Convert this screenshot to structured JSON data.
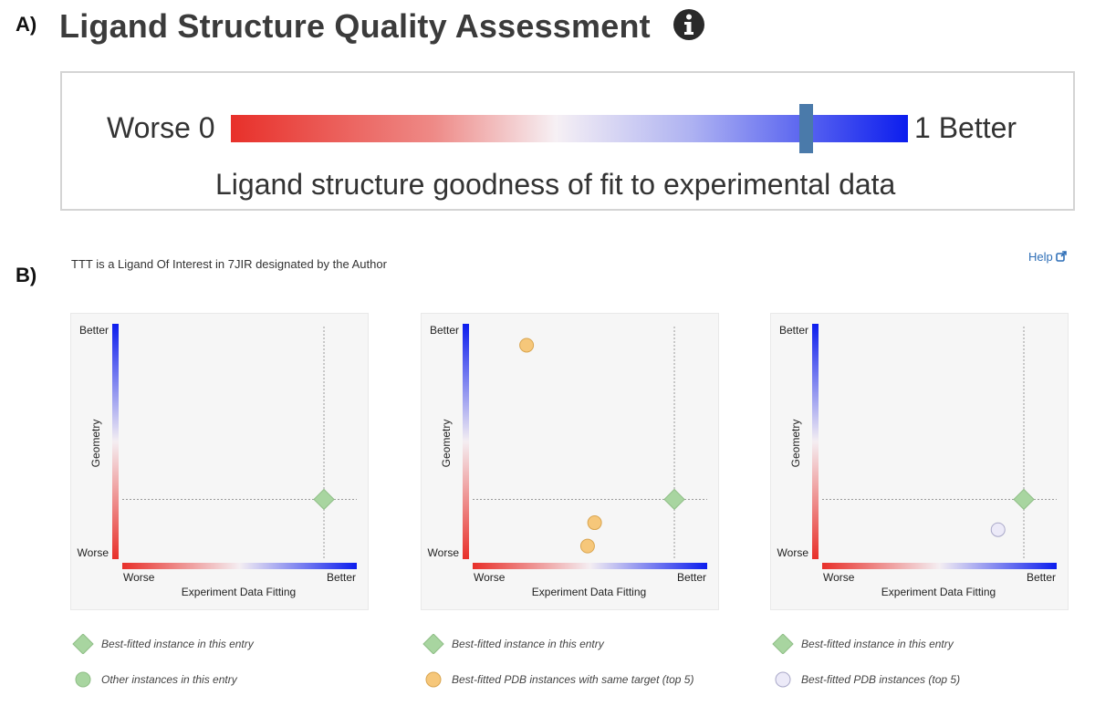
{
  "panel_labels": {
    "a": "A)",
    "b": "B)"
  },
  "section_a": {
    "title": "Ligand Structure Quality Assessment",
    "info_icon": "info-circle-icon",
    "slider": {
      "worse_label": "Worse 0",
      "better_label": "1 Better",
      "caption": "Ligand structure goodness of fit to experimental data",
      "value": 0.85,
      "gradient_colors": [
        "#e8302a",
        "#f6f0f4",
        "#0c1dee"
      ],
      "marker_color": "#4a7aaa"
    }
  },
  "section_b": {
    "subtitle": "TTT is a Ligand Of Interest in 7JIR designated by the Author",
    "help_label": "Help",
    "help_icon": "external-link-icon"
  },
  "chart_data": [
    {
      "type": "scatter",
      "xlabel": "Experiment Data Fitting",
      "ylabel": "Geometry",
      "x_tick_labels": [
        "Worse",
        "Better"
      ],
      "y_tick_labels": [
        "Worse",
        "Better"
      ],
      "xlim": [
        0,
        1
      ],
      "ylim": [
        0,
        1
      ],
      "reference_lines": {
        "x": 0.86,
        "y": 0.26
      },
      "series": [
        {
          "name": "Best-fitted instance in this entry",
          "marker": "diamond",
          "color": "#a8d5a0",
          "points": [
            [
              0.86,
              0.26
            ]
          ]
        }
      ],
      "legend": [
        {
          "label": "Best-fitted instance in this entry",
          "marker": "diamond",
          "color": "#a8d5a0"
        },
        {
          "label": "Other instances in this entry",
          "marker": "circle",
          "color": "#a8d5a0"
        }
      ]
    },
    {
      "type": "scatter",
      "xlabel": "Experiment Data Fitting",
      "ylabel": "Geometry",
      "x_tick_labels": [
        "Worse",
        "Better"
      ],
      "y_tick_labels": [
        "Worse",
        "Better"
      ],
      "xlim": [
        0,
        1
      ],
      "ylim": [
        0,
        1
      ],
      "reference_lines": {
        "x": 0.86,
        "y": 0.26
      },
      "series": [
        {
          "name": "Best-fitted instance in this entry",
          "marker": "diamond",
          "color": "#a8d5a0",
          "points": [
            [
              0.86,
              0.26
            ]
          ]
        },
        {
          "name": "Best-fitted PDB instances with same target (top 5)",
          "marker": "circle",
          "color": "#f6c77a",
          "points": [
            [
              0.23,
              0.92
            ],
            [
              0.52,
              0.16
            ],
            [
              0.49,
              0.06
            ]
          ]
        }
      ],
      "legend": [
        {
          "label": "Best-fitted instance in this entry",
          "marker": "diamond",
          "color": "#a8d5a0"
        },
        {
          "label": "Best-fitted PDB instances with same target (top 5)",
          "marker": "circle",
          "color": "#f6c77a"
        }
      ]
    },
    {
      "type": "scatter",
      "xlabel": "Experiment Data Fitting",
      "ylabel": "Geometry",
      "x_tick_labels": [
        "Worse",
        "Better"
      ],
      "y_tick_labels": [
        "Worse",
        "Better"
      ],
      "xlim": [
        0,
        1
      ],
      "ylim": [
        0,
        1
      ],
      "reference_lines": {
        "x": 0.86,
        "y": 0.26
      },
      "series": [
        {
          "name": "Best-fitted instance in this entry",
          "marker": "diamond",
          "color": "#a8d5a0",
          "points": [
            [
              0.86,
              0.26
            ]
          ]
        },
        {
          "name": "Best-fitted PDB instances (top 5)",
          "marker": "circle",
          "color": "#eceaf8",
          "points": [
            [
              0.75,
              0.13
            ]
          ]
        }
      ],
      "legend": [
        {
          "label": "Best-fitted instance in this entry",
          "marker": "diamond",
          "color": "#a8d5a0"
        },
        {
          "label": "Best-fitted PDB instances (top 5)",
          "marker": "circle",
          "color": "#eceaf8"
        }
      ]
    }
  ]
}
